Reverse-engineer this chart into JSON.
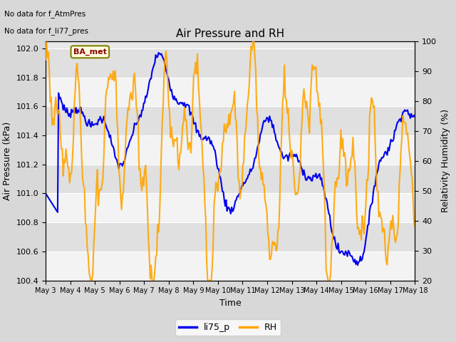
{
  "title": "Air Pressure and RH",
  "xlabel": "Time",
  "ylabel_left": "Air Pressure (kPa)",
  "ylabel_right": "Relativity Humidity (%)",
  "text_no_data_1": "No data for f_AtmPres",
  "text_no_data_2": "No data for f_li77_pres",
  "ba_met_label": "BA_met",
  "ylim_left": [
    100.4,
    102.05
  ],
  "ylim_right": [
    20,
    100
  ],
  "yticks_left": [
    100.4,
    100.6,
    100.8,
    101.0,
    101.2,
    101.4,
    101.6,
    101.8,
    102.0
  ],
  "yticks_right": [
    20,
    30,
    40,
    50,
    60,
    70,
    80,
    90,
    100
  ],
  "xtick_labels": [
    "May 3",
    "May 4",
    "May 5",
    "May 6",
    "May 7",
    "May 8",
    "May 9",
    "May 10",
    "May 11",
    "May 12",
    "May 13",
    "May 14",
    "May 15",
    "May 16",
    "May 17",
    "May 18"
  ],
  "fig_bg_color": "#d8d8d8",
  "plot_bg_color": "#e8e8e8",
  "strip_color_dark": "#d0d0d0",
  "line_blue_color": "#0000ee",
  "line_orange_color": "#ffa500",
  "legend_labels": [
    "li75_p",
    "RH"
  ],
  "title_fontsize": 11,
  "axis_label_fontsize": 9,
  "tick_fontsize": 8,
  "legend_fontsize": 9
}
